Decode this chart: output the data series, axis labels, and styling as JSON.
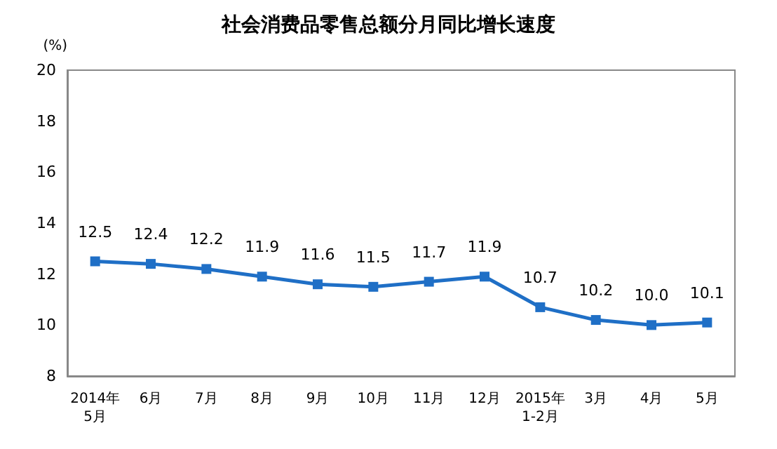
{
  "chart_data": {
    "type": "line",
    "title": "社会消费品零售总额分月同比增长速度",
    "ylabel": "(%)",
    "categories": [
      "2014年\n5月",
      "6月",
      "7月",
      "8月",
      "9月",
      "10月",
      "11月",
      "12月",
      "2015年\n1-2月",
      "3月",
      "4月",
      "5月"
    ],
    "series": [
      {
        "color": "#1f6fc6",
        "values": [
          12.5,
          12.4,
          12.2,
          11.9,
          11.6,
          11.5,
          11.7,
          11.9,
          10.7,
          10.2,
          10.0,
          10.1
        ],
        "value_labels": [
          "12.5",
          "12.4",
          "12.2",
          "11.9",
          "11.6",
          "11.5",
          "11.7",
          "11.9",
          "10.7",
          "10.2",
          "10.0",
          "10.1"
        ]
      }
    ],
    "ylim": [
      8,
      20
    ],
    "yticks": [
      8,
      10,
      12,
      14,
      16,
      18,
      20
    ],
    "grid": false,
    "marker": "square",
    "line_style": "solid"
  }
}
